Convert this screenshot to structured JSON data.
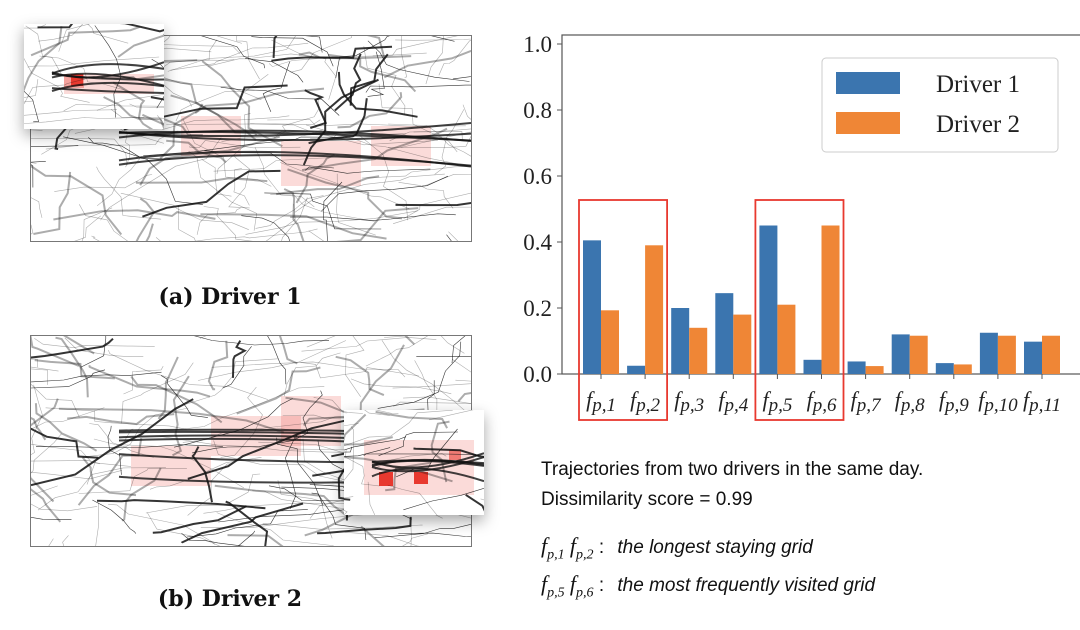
{
  "panels": [
    {
      "caption": "(a) Driver 1"
    },
    {
      "caption": "(b) Driver 2"
    }
  ],
  "chart_data": {
    "type": "bar",
    "categories": [
      "f_{p,1}",
      "f_{p,2}",
      "f_{p,3}",
      "f_{p,4}",
      "f_{p,5}",
      "f_{p,6}",
      "f_{p,7}",
      "f_{p,8}",
      "f_{p,9}",
      "f_{p,10}",
      "f_{p,11}"
    ],
    "category_labels": [
      [
        "f",
        "p,1"
      ],
      [
        "f",
        "p,2"
      ],
      [
        "f",
        "p,3"
      ],
      [
        "f",
        "p,4"
      ],
      [
        "f",
        "p,5"
      ],
      [
        "f",
        "p,6"
      ],
      [
        "f",
        "p,7"
      ],
      [
        "f",
        "p,8"
      ],
      [
        "f",
        "p,9"
      ],
      [
        "f",
        "p,10"
      ],
      [
        "f",
        "p,11"
      ]
    ],
    "series": [
      {
        "name": "Driver 1",
        "color": "#3b75af",
        "values": [
          0.405,
          0.025,
          0.2,
          0.245,
          0.45,
          0.043,
          0.038,
          0.12,
          0.033,
          0.125,
          0.098
        ]
      },
      {
        "name": "Driver 2",
        "color": "#ef8636",
        "values": [
          0.193,
          0.39,
          0.14,
          0.18,
          0.21,
          0.45,
          0.024,
          0.116,
          0.029,
          0.116,
          0.116
        ]
      }
    ],
    "ylim": [
      0,
      1.0
    ],
    "yticks": [
      "0.0",
      "0.2",
      "0.4",
      "0.6",
      "0.8",
      "1.0"
    ],
    "legend_position": "top-right",
    "highlight_groups": [
      [
        0,
        1
      ],
      [
        4,
        5
      ]
    ],
    "highlight_color": "#e8392f",
    "grid": false
  },
  "notes": {
    "line1": "Trajectories from two drivers in the same day.",
    "line2": "Dissimilarity score = 0.99",
    "def1": {
      "f1": "f",
      "s1": "p,1",
      "f2": "f",
      "s2": "p,2",
      "sep": ":",
      "text": "the longest staying grid"
    },
    "def2": {
      "f1": "f",
      "s1": "p,5",
      "f2": "f",
      "s2": "p,6",
      "sep": ":",
      "text": "the most frequently visited grid"
    }
  }
}
